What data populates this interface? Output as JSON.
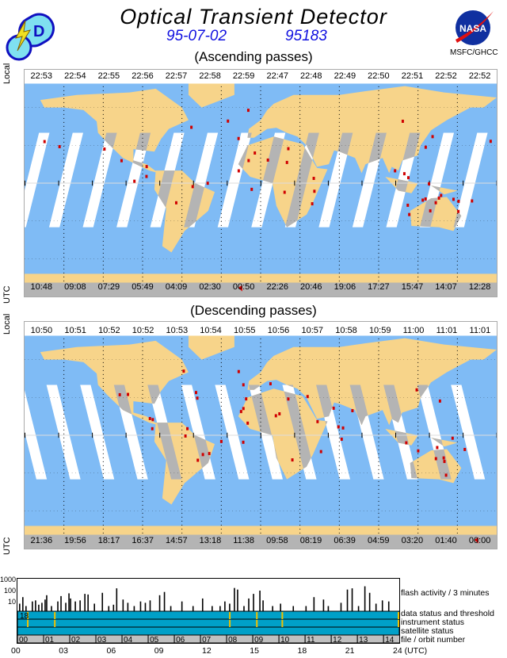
{
  "header": {
    "title": "Optical Transient Detector",
    "date": "95-07-02",
    "day_of_year": "95183",
    "org": "MSFC/GHCC",
    "logo_otd": "OTD",
    "logo_nasa": "NASA"
  },
  "ascending": {
    "title": "(Ascending passes)",
    "local_label": "Local",
    "utc_label": "UTC",
    "local_times": [
      "22:53",
      "22:54",
      "22:55",
      "22:56",
      "22:57",
      "22:58",
      "22:59",
      "22:47",
      "22:48",
      "22:49",
      "22:50",
      "22:51",
      "22:52",
      "22:52"
    ],
    "utc_times": [
      "10:48",
      "09:08",
      "07:29",
      "05:49",
      "04:09",
      "02:30",
      "00:50",
      "22:26",
      "20:46",
      "19:06",
      "17:27",
      "15:47",
      "14:07",
      "12:28"
    ]
  },
  "descending": {
    "title": "(Descending passes)",
    "local_label": "Local",
    "utc_label": "UTC",
    "local_times": [
      "10:50",
      "10:51",
      "10:52",
      "10:52",
      "10:53",
      "10:54",
      "10:55",
      "10:56",
      "10:57",
      "10:58",
      "10:59",
      "11:00",
      "11:01",
      "11:01"
    ],
    "utc_times": [
      "21:36",
      "19:56",
      "18:17",
      "16:37",
      "14:57",
      "13:18",
      "11:38",
      "09:58",
      "08:19",
      "06:39",
      "04:59",
      "03:20",
      "01:40",
      "00:00"
    ]
  },
  "colors": {
    "ocean": "#7fbbf5",
    "land": "#f7d48a",
    "swath": "#ffffff",
    "swath_land": "#b4b4b4",
    "flash": "#d00000",
    "status": "#00a0c8",
    "status_flag": "#f0c000"
  },
  "chart_data": {
    "type": "bar",
    "title": "flash activity / 3 minutes",
    "yscale": "log",
    "yticks": [
      "1000",
      "100",
      "10"
    ],
    "ylim": [
      1,
      1000
    ],
    "xticks": [
      "00",
      "03",
      "06",
      "09",
      "12",
      "15",
      "18",
      "21",
      "24 (UTC)"
    ],
    "xlim": [
      0,
      24
    ],
    "bars": [
      [
        0.1,
        5
      ],
      [
        0.3,
        20
      ],
      [
        0.5,
        3
      ],
      [
        0.9,
        8
      ],
      [
        1.1,
        10
      ],
      [
        1.3,
        4
      ],
      [
        1.5,
        6
      ],
      [
        1.7,
        12
      ],
      [
        1.8,
        30
      ],
      [
        2.1,
        3
      ],
      [
        2.5,
        8
      ],
      [
        2.7,
        25
      ],
      [
        3.0,
        6
      ],
      [
        3.2,
        45
      ],
      [
        3.3,
        15
      ],
      [
        3.6,
        8
      ],
      [
        3.9,
        10
      ],
      [
        4.2,
        40
      ],
      [
        4.4,
        35
      ],
      [
        4.8,
        5
      ],
      [
        5.3,
        50
      ],
      [
        5.7,
        3
      ],
      [
        6.0,
        4
      ],
      [
        6.2,
        130
      ],
      [
        6.6,
        12
      ],
      [
        6.9,
        6
      ],
      [
        7.3,
        3
      ],
      [
        7.7,
        8
      ],
      [
        8.0,
        6
      ],
      [
        8.3,
        10
      ],
      [
        8.9,
        30
      ],
      [
        9.2,
        60
      ],
      [
        9.6,
        3
      ],
      [
        10.3,
        8
      ],
      [
        11.0,
        3
      ],
      [
        11.6,
        15
      ],
      [
        12.2,
        3
      ],
      [
        12.7,
        3
      ],
      [
        13.0,
        8
      ],
      [
        13.3,
        5
      ],
      [
        13.6,
        140
      ],
      [
        13.8,
        100
      ],
      [
        14.2,
        3
      ],
      [
        14.5,
        15
      ],
      [
        14.8,
        40
      ],
      [
        15.2,
        80
      ],
      [
        15.4,
        10
      ],
      [
        16.0,
        3
      ],
      [
        16.5,
        5
      ],
      [
        17.3,
        3
      ],
      [
        18.1,
        3
      ],
      [
        18.6,
        20
      ],
      [
        19.2,
        12
      ],
      [
        19.5,
        3
      ],
      [
        20.3,
        6
      ],
      [
        20.7,
        100
      ],
      [
        21.0,
        130
      ],
      [
        21.4,
        3
      ],
      [
        21.8,
        200
      ],
      [
        22.1,
        50
      ],
      [
        22.5,
        5
      ],
      [
        22.9,
        10
      ],
      [
        23.3,
        8
      ]
    ],
    "status_labels": [
      "data status and threshold",
      "instrument status",
      "satellite status",
      "file / orbit number"
    ],
    "threshold": "18",
    "orbits": [
      "00",
      "01",
      "02",
      "03",
      "04",
      "05",
      "06",
      "07",
      "08",
      "09",
      "10",
      "11",
      "12",
      "13",
      "14"
    ],
    "flag_hours": [
      0.6,
      2.3,
      13.3,
      15.0,
      16.6,
      23.9
    ]
  }
}
